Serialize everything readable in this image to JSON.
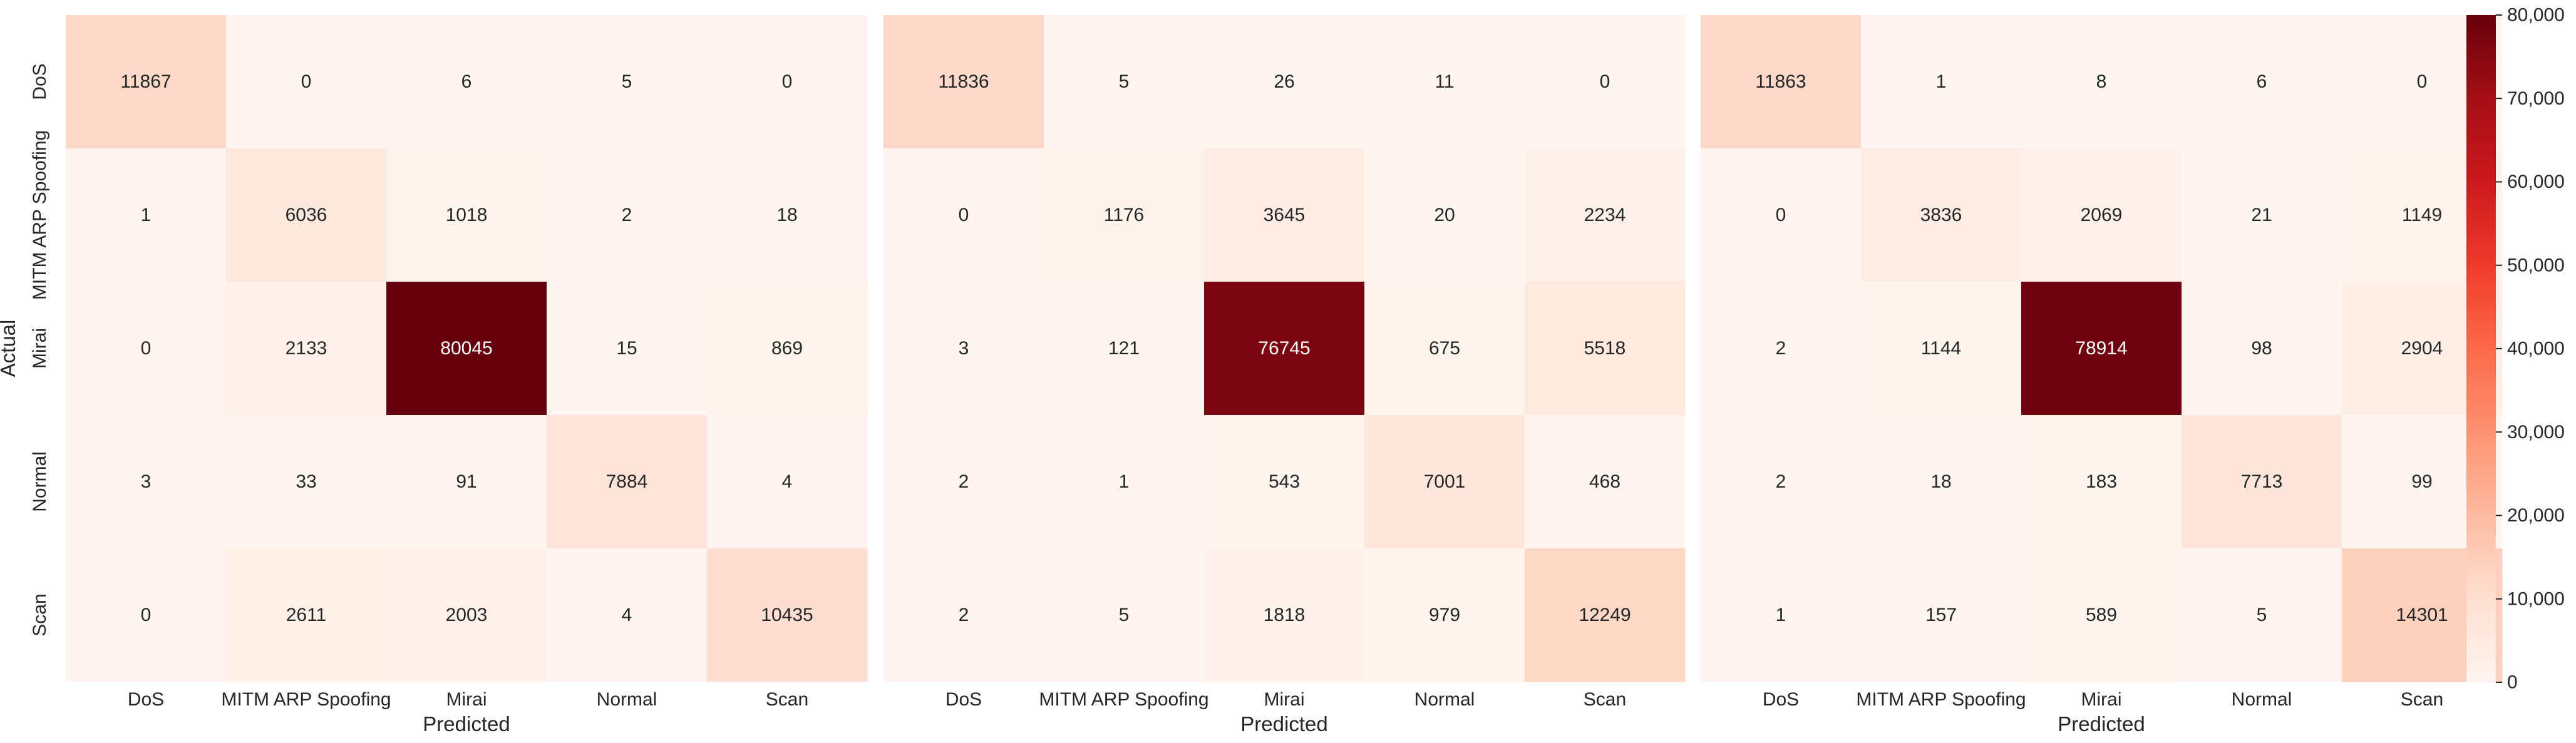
{
  "chart_data": [
    {
      "type": "heatmap",
      "xlabel": "Predicted",
      "ylabel": "Actual",
      "x_categories": [
        "DoS",
        "MITM ARP Spoofing",
        "Mirai",
        "Normal",
        "Scan"
      ],
      "y_categories": [
        "DoS",
        "MITM ARP Spoofing",
        "Mirai",
        "Normal",
        "Scan"
      ],
      "values": [
        [
          11867,
          0,
          6,
          5,
          0
        ],
        [
          1,
          6036,
          1018,
          2,
          18
        ],
        [
          0,
          2133,
          80045,
          15,
          869
        ],
        [
          3,
          33,
          91,
          7884,
          4
        ],
        [
          0,
          2611,
          2003,
          4,
          10435
        ]
      ]
    },
    {
      "type": "heatmap",
      "xlabel": "Predicted",
      "ylabel": "",
      "x_categories": [
        "DoS",
        "MITM ARP Spoofing",
        "Mirai",
        "Normal",
        "Scan"
      ],
      "y_categories": [],
      "values": [
        [
          11836,
          5,
          26,
          11,
          0
        ],
        [
          0,
          1176,
          3645,
          20,
          2234
        ],
        [
          3,
          121,
          76745,
          675,
          5518
        ],
        [
          2,
          1,
          543,
          7001,
          468
        ],
        [
          2,
          5,
          1818,
          979,
          12249
        ]
      ]
    },
    {
      "type": "heatmap",
      "xlabel": "Predicted",
      "ylabel": "",
      "x_categories": [
        "DoS",
        "MITM ARP Spoofing",
        "Mirai",
        "Normal",
        "Scan"
      ],
      "y_categories": [],
      "values": [
        [
          11863,
          1,
          8,
          6,
          0
        ],
        [
          0,
          3836,
          2069,
          21,
          1149
        ],
        [
          2,
          1144,
          78914,
          98,
          2904
        ],
        [
          2,
          18,
          183,
          7713,
          99
        ],
        [
          1,
          157,
          589,
          5,
          14301
        ]
      ]
    }
  ],
  "colorbar": {
    "colormap": "Reds",
    "vmin": 0,
    "vmax": 80000,
    "ticks": [
      0,
      10000,
      20000,
      30000,
      40000,
      50000,
      60000,
      70000,
      80000
    ],
    "tick_labels": [
      "0",
      "10,000",
      "20,000",
      "30,000",
      "40,000",
      "50,000",
      "60,000",
      "70,000",
      "80,000"
    ]
  },
  "colors": {
    "text_dark": "#262626",
    "text_light": "#ffffff"
  }
}
